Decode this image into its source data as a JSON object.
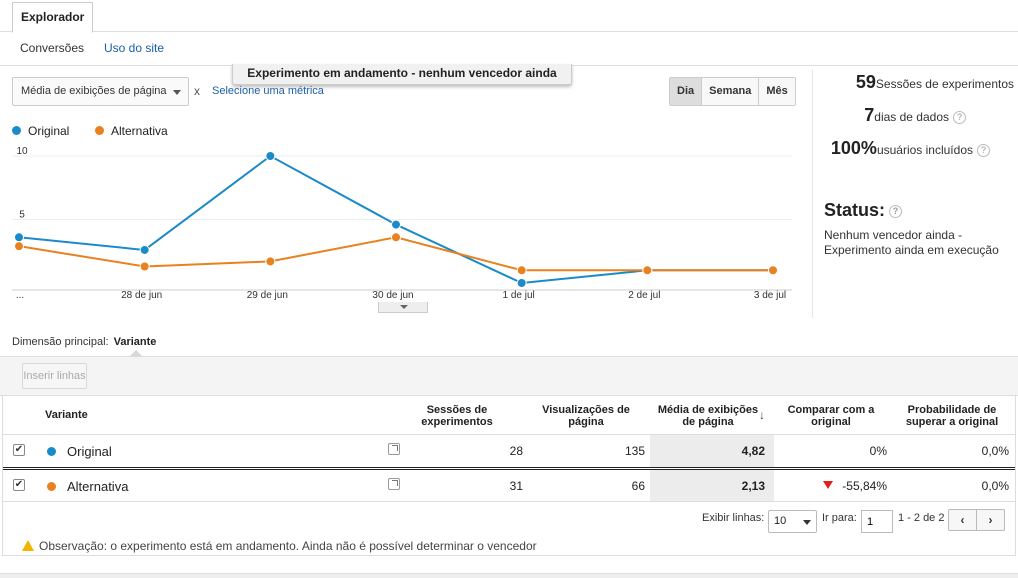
{
  "tabs": {
    "active": "Explorador"
  },
  "subnav": {
    "conversoes": "Conversões",
    "uso_do_site": "Uso do site"
  },
  "toast": "Experimento em andamento - nenhum vencedor ainda",
  "metric": {
    "selected": "Média de exibições de página",
    "remove": "x",
    "add_link": "Selecione uma métrica"
  },
  "period": {
    "dia": "Dia",
    "semana": "Semana",
    "mes": "Mês"
  },
  "legend": {
    "original": "Original",
    "alternativa": "Alternativa"
  },
  "colors": {
    "original": "#1b8ac9",
    "alternativa": "#e8811e",
    "negative": "#e0201f",
    "link": "#1a5fa8"
  },
  "stats": {
    "sessions_value": "59",
    "sessions_label": "Sessões de experimentos",
    "days_value": "7",
    "days_label": "dias de dados",
    "users_value": "100%",
    "users_label": "usuários incluídos",
    "help": "?",
    "status_title": "Status:",
    "status_text": "Nenhum vencedor ainda - Experimento ainda em execução"
  },
  "dimension": {
    "label": "Dimensão principal:",
    "value": "Variante"
  },
  "insert_rows": "Inserir linhas",
  "table": {
    "headers": {
      "variante": "Variante",
      "sessoes": "Sessões de experimentos",
      "visualizacoes": "Visualizações de página",
      "media": "Média de exibições de página",
      "comparar": "Comparar com a original",
      "probabilidade": "Probabilidade de superar a original"
    },
    "rows": [
      {
        "name": "Original",
        "sessoes": "28",
        "visualizacoes": "135",
        "media": "4,82",
        "comparar": "0%",
        "probabilidade": "0,0%",
        "checked": "✔"
      },
      {
        "name": "Alternativa",
        "sessoes": "31",
        "visualizacoes": "66",
        "media": "2,13",
        "comparar": "-55,84%",
        "probabilidade": "0,0%",
        "checked": "✔"
      }
    ]
  },
  "pager": {
    "show_rows_label": "Exibir linhas:",
    "rows_value": "10",
    "goto_label": "Ir para:",
    "goto_value": "1",
    "range": "1 - 2 de 2",
    "prev": "‹",
    "next": "›"
  },
  "note": "Observação: o experimento está em andamento. Ainda não é possível determinar o vencedor",
  "chart_data": {
    "type": "line",
    "categories": [
      "...",
      "28 de jun",
      "29 de jun",
      "30 de jun",
      "1 de jul",
      "2 de jul",
      "3 de jul"
    ],
    "ylim": [
      0,
      10
    ],
    "yticks": [
      "5",
      "10"
    ],
    "ytick_values": [
      5,
      10
    ],
    "series": [
      {
        "name": "Original",
        "values": [
          3.6,
          2.6,
          10.0,
          4.6,
          0.0,
          1.0,
          1.0
        ]
      },
      {
        "name": "Alternativa",
        "values": [
          2.9,
          1.3,
          1.7,
          3.6,
          1.0,
          1.0,
          1.0
        ]
      }
    ]
  }
}
